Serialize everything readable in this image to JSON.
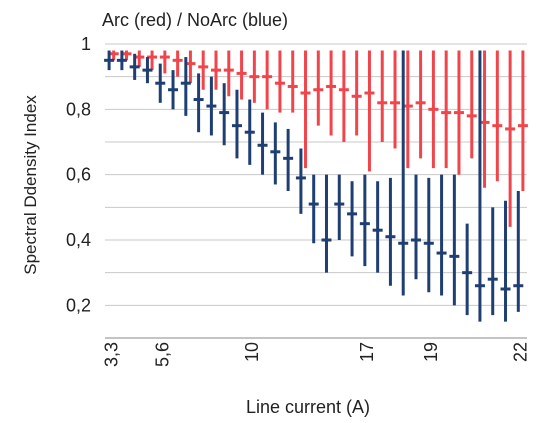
{
  "chart_data": {
    "type": "errorbar",
    "title": "Arc (red) / NoArc (blue)",
    "xlabel": "Line current (A)",
    "ylabel": "Spectral Ddensity Index",
    "ylim": [
      0.1,
      1.0
    ],
    "yticks": [
      0.2,
      0.4,
      0.6,
      0.8,
      1
    ],
    "ytick_labels": [
      "0,2",
      "0,4",
      "0,6",
      "0,8",
      "1"
    ],
    "xticks": [
      {
        "x": 1,
        "label": "3,3"
      },
      {
        "x": 5,
        "label": "5,6"
      },
      {
        "x": 12,
        "label": "10"
      },
      {
        "x": 21,
        "label": "17"
      },
      {
        "x": 26,
        "label": "19"
      },
      {
        "x": 33,
        "label": "22"
      }
    ],
    "xlim": [
      0.5,
      33.5
    ],
    "grid": true,
    "series": [
      {
        "color": "#f0454a",
        "points": [
          {
            "x": 1,
            "median": 0.97,
            "low": 0.95,
            "high": 0.98
          },
          {
            "x": 2,
            "median": 0.97,
            "low": 0.95,
            "high": 0.98
          },
          {
            "x": 3,
            "median": 0.96,
            "low": 0.93,
            "high": 0.98
          },
          {
            "x": 4,
            "median": 0.96,
            "low": 0.92,
            "high": 0.98
          },
          {
            "x": 5,
            "median": 0.96,
            "low": 0.91,
            "high": 0.98
          },
          {
            "x": 6,
            "median": 0.95,
            "low": 0.9,
            "high": 0.98
          },
          {
            "x": 7,
            "median": 0.94,
            "low": 0.88,
            "high": 0.98
          },
          {
            "x": 8,
            "median": 0.93,
            "low": 0.86,
            "high": 0.98
          },
          {
            "x": 9,
            "median": 0.92,
            "low": 0.86,
            "high": 0.98
          },
          {
            "x": 10,
            "median": 0.92,
            "low": 0.84,
            "high": 0.98
          },
          {
            "x": 11,
            "median": 0.91,
            "low": 0.83,
            "high": 0.98
          },
          {
            "x": 12,
            "median": 0.9,
            "low": 0.82,
            "high": 0.98
          },
          {
            "x": 13,
            "median": 0.9,
            "low": 0.8,
            "high": 0.98
          },
          {
            "x": 14,
            "median": 0.88,
            "low": 0.79,
            "high": 0.98
          },
          {
            "x": 15,
            "median": 0.87,
            "low": 0.79,
            "high": 0.98
          },
          {
            "x": 16,
            "median": 0.85,
            "low": 0.62,
            "high": 0.98
          },
          {
            "x": 17,
            "median": 0.86,
            "low": 0.75,
            "high": 0.98
          },
          {
            "x": 18,
            "median": 0.87,
            "low": 0.72,
            "high": 0.98
          },
          {
            "x": 19,
            "median": 0.86,
            "low": 0.7,
            "high": 0.98
          },
          {
            "x": 20,
            "median": 0.84,
            "low": 0.72,
            "high": 0.98
          },
          {
            "x": 21,
            "median": 0.85,
            "low": 0.61,
            "high": 0.98
          },
          {
            "x": 22,
            "median": 0.82,
            "low": 0.7,
            "high": 0.98
          },
          {
            "x": 23,
            "median": 0.82,
            "low": 0.68,
            "high": 0.98
          },
          {
            "x": 24,
            "median": 0.81,
            "low": 0.62,
            "high": 0.98
          },
          {
            "x": 25,
            "median": 0.82,
            "low": 0.65,
            "high": 0.98
          },
          {
            "x": 26,
            "median": 0.8,
            "low": 0.62,
            "high": 0.98
          },
          {
            "x": 27,
            "median": 0.79,
            "low": 0.62,
            "high": 0.98
          },
          {
            "x": 28,
            "median": 0.79,
            "low": 0.6,
            "high": 0.98
          },
          {
            "x": 29,
            "median": 0.78,
            "low": 0.65,
            "high": 0.98
          },
          {
            "x": 30,
            "median": 0.76,
            "low": 0.56,
            "high": 0.98
          },
          {
            "x": 31,
            "median": 0.75,
            "low": 0.58,
            "high": 0.98
          },
          {
            "x": 32,
            "median": 0.74,
            "low": 0.44,
            "high": 0.98
          },
          {
            "x": 33,
            "median": 0.75,
            "low": 0.55,
            "high": 0.98
          }
        ]
      },
      {
        "color": "#1f3f73",
        "points": [
          {
            "x": 1,
            "median": 0.95,
            "low": 0.92,
            "high": 0.98
          },
          {
            "x": 2,
            "median": 0.95,
            "low": 0.92,
            "high": 0.98
          },
          {
            "x": 3,
            "median": 0.93,
            "low": 0.89,
            "high": 0.97
          },
          {
            "x": 4,
            "median": 0.92,
            "low": 0.88,
            "high": 0.96
          },
          {
            "x": 5,
            "median": 0.88,
            "low": 0.82,
            "high": 0.94
          },
          {
            "x": 6,
            "median": 0.86,
            "low": 0.8,
            "high": 0.92
          },
          {
            "x": 7,
            "median": 0.88,
            "low": 0.78,
            "high": 0.96
          },
          {
            "x": 8,
            "median": 0.83,
            "low": 0.73,
            "high": 0.91
          },
          {
            "x": 9,
            "median": 0.81,
            "low": 0.72,
            "high": 0.9
          },
          {
            "x": 10,
            "median": 0.79,
            "low": 0.69,
            "high": 0.88
          },
          {
            "x": 11,
            "median": 0.75,
            "low": 0.65,
            "high": 0.86
          },
          {
            "x": 12,
            "median": 0.73,
            "low": 0.63,
            "high": 0.83
          },
          {
            "x": 13,
            "median": 0.69,
            "low": 0.6,
            "high": 0.79
          },
          {
            "x": 14,
            "median": 0.67,
            "low": 0.57,
            "high": 0.76
          },
          {
            "x": 15,
            "median": 0.65,
            "low": 0.55,
            "high": 0.74
          },
          {
            "x": 16,
            "median": 0.59,
            "low": 0.48,
            "high": 0.68
          },
          {
            "x": 17,
            "median": 0.51,
            "low": 0.39,
            "high": 0.6
          },
          {
            "x": 18,
            "median": 0.4,
            "low": 0.3,
            "high": 0.6
          },
          {
            "x": 19,
            "median": 0.51,
            "low": 0.4,
            "high": 0.6
          },
          {
            "x": 20,
            "median": 0.48,
            "low": 0.35,
            "high": 0.58
          },
          {
            "x": 21,
            "median": 0.45,
            "low": 0.32,
            "high": 0.6
          },
          {
            "x": 22,
            "median": 0.43,
            "low": 0.3,
            "high": 0.58
          },
          {
            "x": 23,
            "median": 0.41,
            "low": 0.26,
            "high": 0.59
          },
          {
            "x": 24,
            "median": 0.39,
            "low": 0.23,
            "high": 0.98
          },
          {
            "x": 25,
            "median": 0.4,
            "low": 0.28,
            "high": 0.6
          },
          {
            "x": 26,
            "median": 0.39,
            "low": 0.24,
            "high": 0.59
          },
          {
            "x": 27,
            "median": 0.36,
            "low": 0.23,
            "high": 0.6
          },
          {
            "x": 28,
            "median": 0.35,
            "low": 0.2,
            "high": 0.6
          },
          {
            "x": 29,
            "median": 0.3,
            "low": 0.17,
            "high": 0.45
          },
          {
            "x": 30,
            "median": 0.26,
            "low": 0.15,
            "high": 0.98
          },
          {
            "x": 31,
            "median": 0.28,
            "low": 0.17,
            "high": 0.5
          },
          {
            "x": 32,
            "median": 0.25,
            "low": 0.15,
            "high": 0.52
          },
          {
            "x": 33,
            "median": 0.26,
            "low": 0.18,
            "high": 0.55
          }
        ]
      }
    ]
  }
}
